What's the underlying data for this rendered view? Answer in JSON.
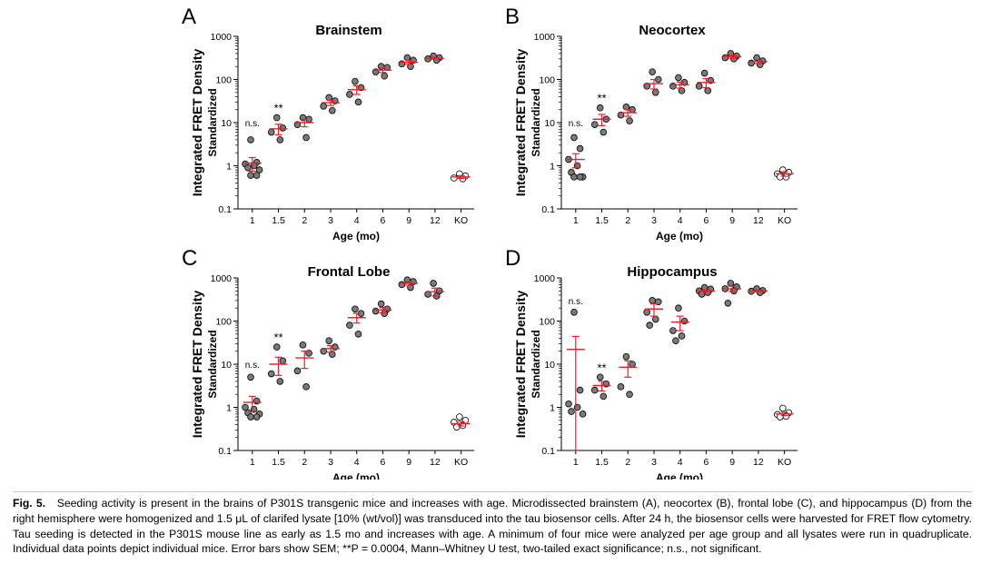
{
  "figure": {
    "ylabel": "Integrated FRET Density",
    "ylabel_sub": "Standardized",
    "xlabel": "Age (mo)",
    "yticks": [
      "0.1",
      "1",
      "10",
      "100",
      "1000"
    ],
    "sig_labels": {
      "ns": "n.s.",
      "star": "**"
    },
    "colors": {
      "mean": "#e8202a",
      "point_fill": "#7a7a7a",
      "ko_fill": "#ffffff",
      "axis": "#000000"
    }
  },
  "chart_data": [
    {
      "type": "scatter",
      "panel": "A",
      "title": "Brainstem",
      "xlabel": "Age (mo)",
      "ylabel": "Integrated FRET Density Standardized",
      "yscale": "log",
      "ylim": [
        0.1,
        1000
      ],
      "categories": [
        "1",
        "1.5",
        "2",
        "3",
        "4",
        "6",
        "9",
        "12",
        "KO"
      ],
      "groups": [
        {
          "x": "1",
          "points": [
            4,
            1.2,
            1.1,
            1.0,
            0.9,
            0.8,
            0.6,
            0.6
          ],
          "mean": 1.15,
          "sem": 0.4,
          "annotation": "n.s."
        },
        {
          "x": "1.5",
          "points": [
            13,
            7.5,
            6,
            4
          ],
          "mean": 7.2,
          "sem": 2,
          "annotation": "**"
        },
        {
          "x": "2",
          "points": [
            13,
            12,
            9,
            4.5
          ],
          "mean": 10,
          "sem": 2
        },
        {
          "x": "3",
          "points": [
            38,
            32,
            24,
            19
          ],
          "mean": 29,
          "sem": 4
        },
        {
          "x": "4",
          "points": [
            90,
            65,
            45,
            30
          ],
          "mean": 58,
          "sem": 13
        },
        {
          "x": "6",
          "points": [
            200,
            190,
            150,
            120
          ],
          "mean": 165,
          "sem": 20
        },
        {
          "x": "9",
          "points": [
            320,
            280,
            230,
            200
          ],
          "mean": 250,
          "sem": 25
        },
        {
          "x": "12",
          "points": [
            350,
            320,
            300,
            280
          ],
          "mean": 310,
          "sem": 15
        },
        {
          "x": "KO",
          "points": [
            0.65,
            0.58,
            0.52,
            0.5
          ],
          "mean": 0.55,
          "sem": 0.04,
          "open": true
        }
      ]
    },
    {
      "type": "scatter",
      "panel": "B",
      "title": "Neocortex",
      "xlabel": "Age (mo)",
      "ylabel": "Integrated FRET Density Standardized",
      "yscale": "log",
      "ylim": [
        0.1,
        1000
      ],
      "categories": [
        "1",
        "1.5",
        "2",
        "3",
        "4",
        "6",
        "9",
        "12",
        "KO"
      ],
      "groups": [
        {
          "x": "1",
          "points": [
            4.5,
            2.5,
            1.4,
            1.0,
            0.7,
            0.55,
            0.55,
            0.55
          ],
          "mean": 1.4,
          "sem": 0.5,
          "annotation": "n.s."
        },
        {
          "x": "1.5",
          "points": [
            22,
            12,
            9,
            6
          ],
          "mean": 12,
          "sem": 3.5,
          "annotation": "**"
        },
        {
          "x": "2",
          "points": [
            23,
            20,
            15,
            11
          ],
          "mean": 17,
          "sem": 3
        },
        {
          "x": "3",
          "points": [
            150,
            100,
            70,
            50
          ],
          "mean": 80,
          "sem": 20
        },
        {
          "x": "4",
          "points": [
            110,
            85,
            70,
            55
          ],
          "mean": 75,
          "sem": 12
        },
        {
          "x": "6",
          "points": [
            140,
            95,
            70,
            55
          ],
          "mean": 85,
          "sem": 20
        },
        {
          "x": "9",
          "points": [
            400,
            350,
            320,
            300
          ],
          "mean": 340,
          "sem": 30
        },
        {
          "x": "12",
          "points": [
            320,
            270,
            240,
            220
          ],
          "mean": 260,
          "sem": 25
        },
        {
          "x": "KO",
          "points": [
            0.8,
            0.7,
            0.65,
            0.55,
            0.55
          ],
          "mean": 0.65,
          "sem": 0.08,
          "open": true
        }
      ]
    },
    {
      "type": "scatter",
      "panel": "C",
      "title": "Frontal Lobe",
      "xlabel": "Age (mo)",
      "ylabel": "Integrated FRET Density Standardized",
      "yscale": "log",
      "ylim": [
        0.1,
        1000
      ],
      "categories": [
        "1",
        "1.5",
        "2",
        "3",
        "4",
        "6",
        "9",
        "12",
        "KO"
      ],
      "groups": [
        {
          "x": "1",
          "points": [
            5,
            1.4,
            1.0,
            0.9,
            0.75,
            0.7,
            0.6,
            0.6
          ],
          "mean": 1.3,
          "sem": 0.5,
          "annotation": "n.s."
        },
        {
          "x": "1.5",
          "points": [
            25,
            12,
            6,
            4
          ],
          "mean": 10,
          "sem": 4.5,
          "annotation": "**"
        },
        {
          "x": "2",
          "points": [
            28,
            18,
            7,
            3
          ],
          "mean": 14,
          "sem": 6
        },
        {
          "x": "3",
          "points": [
            35,
            25,
            20,
            17
          ],
          "mean": 23,
          "sem": 4
        },
        {
          "x": "4",
          "points": [
            190,
            150,
            80,
            50
          ],
          "mean": 120,
          "sem": 30
        },
        {
          "x": "6",
          "points": [
            250,
            190,
            170,
            150
          ],
          "mean": 180,
          "sem": 25
        },
        {
          "x": "9",
          "points": [
            900,
            820,
            700,
            600
          ],
          "mean": 750,
          "sem": 70
        },
        {
          "x": "12",
          "points": [
            750,
            500,
            420,
            380
          ],
          "mean": 480,
          "sem": 100
        },
        {
          "x": "KO",
          "points": [
            0.6,
            0.5,
            0.45,
            0.38,
            0.35
          ],
          "mean": 0.42,
          "sem": 0.05,
          "open": true
        }
      ]
    },
    {
      "type": "scatter",
      "panel": "D",
      "title": "Hippocampus",
      "xlabel": "Age (mo)",
      "ylabel": "Integrated FRET Density Standardized",
      "yscale": "log",
      "ylim": [
        0.1,
        1000
      ],
      "categories": [
        "1",
        "1.5",
        "2",
        "3",
        "4",
        "6",
        "9",
        "12",
        "KO"
      ],
      "groups": [
        {
          "x": "1",
          "points": [
            160,
            2.5,
            1.2,
            1.0,
            0.8,
            0.7
          ],
          "mean": 22,
          "sem": 22,
          "annotation": "n.s."
        },
        {
          "x": "1.5",
          "points": [
            5,
            3.5,
            2.5,
            1.8
          ],
          "mean": 3.2,
          "sem": 0.8,
          "annotation": "**"
        },
        {
          "x": "2",
          "points": [
            15,
            10,
            3,
            2
          ],
          "mean": 8.5,
          "sem": 3.5
        },
        {
          "x": "3",
          "points": [
            300,
            280,
            160,
            110,
            80
          ],
          "mean": 190,
          "sem": 60
        },
        {
          "x": "4",
          "points": [
            200,
            100,
            60,
            45,
            35
          ],
          "mean": 95,
          "sem": 35
        },
        {
          "x": "6",
          "points": [
            600,
            550,
            500,
            460,
            420
          ],
          "mean": 500,
          "sem": 35
        },
        {
          "x": "9",
          "points": [
            750,
            620,
            560,
            500,
            260
          ],
          "mean": 560,
          "sem": 80
        },
        {
          "x": "12",
          "points": [
            560,
            510,
            490,
            460
          ],
          "mean": 500,
          "sem": 25
        },
        {
          "x": "KO",
          "points": [
            0.95,
            0.75,
            0.68,
            0.62,
            0.6
          ],
          "mean": 0.7,
          "sem": 0.06,
          "open": true
        }
      ]
    }
  ],
  "caption": {
    "label": "Fig. 5.",
    "text": "Seeding activity is present in the brains of P301S transgenic mice and increases with age. Microdissected brainstem (A), neocortex (B), frontal lobe (C), and hippocampus (D) from the right hemisphere were homogenized and 1.5 μL of clarifed lysate [10% (wt/vol)] was transduced into the tau biosensor cells. After 24 h, the biosensor cells were harvested for FRET flow cytometry. Tau seeding is detected in the P301S mouse line as early as 1.5 mo and increases with age. A minimum of four mice were analyzed per age group and all lysates were run in quadruplicate. Individual data points depict individual mice. Error bars show SEM; **P = 0.0004, Mann–Whitney U test, two-tailed exact significance; n.s., not significant."
  }
}
